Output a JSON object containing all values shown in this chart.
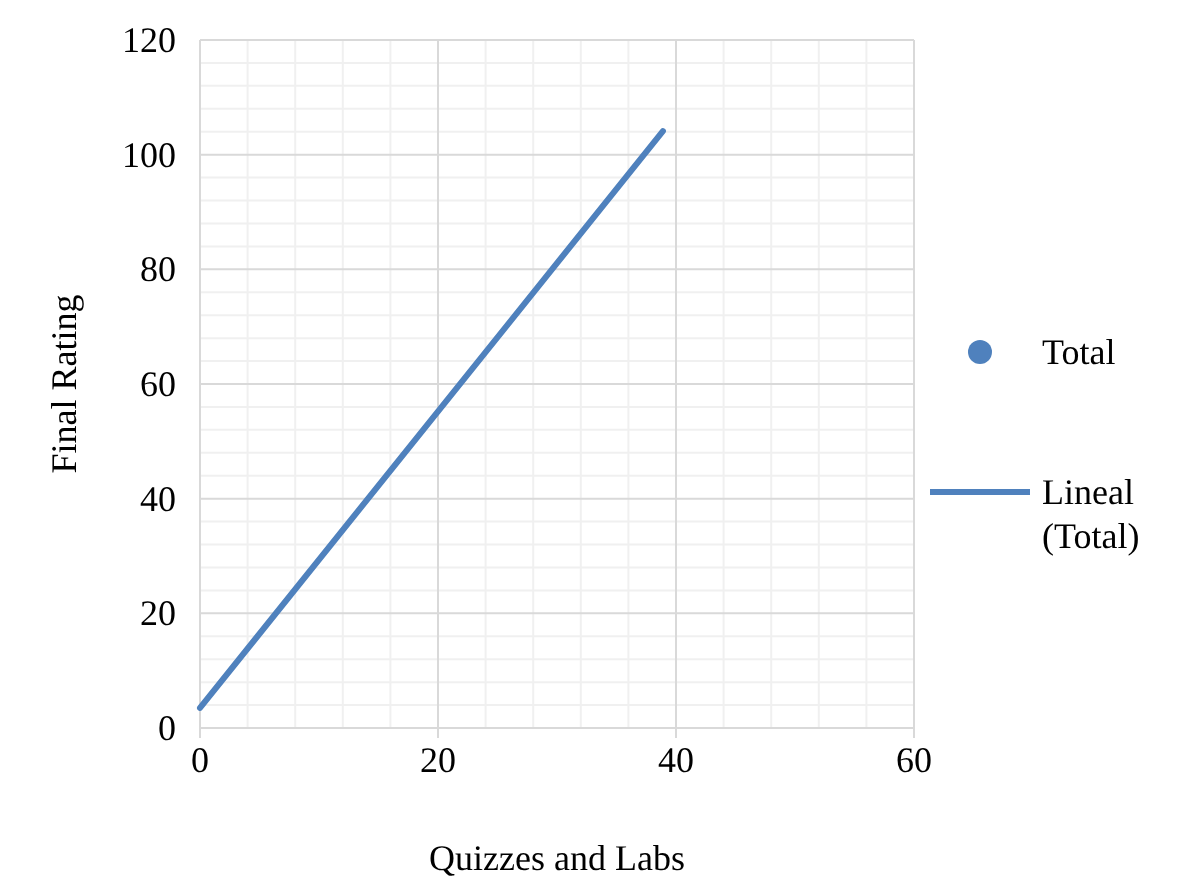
{
  "chart_data": {
    "type": "scatter",
    "xlabel": "Quizzes and Labs",
    "ylabel": "Final Rating",
    "xlim": [
      0,
      60
    ],
    "xticks": [
      0,
      20,
      40,
      60
    ],
    "ylim": [
      0,
      120
    ],
    "yticks": [
      0,
      20,
      40,
      60,
      80,
      100,
      120
    ],
    "grid": true,
    "legend": "right",
    "series": [
      {
        "name": "Total",
        "color": "#4f81bd",
        "marker": "circle"
      },
      {
        "name": "Lineal (Total)",
        "type": "line",
        "color": "#4f81bd",
        "line_style": "solid",
        "x": [
          0,
          38.9
        ],
        "values": [
          3.5,
          104.1
        ]
      }
    ]
  }
}
